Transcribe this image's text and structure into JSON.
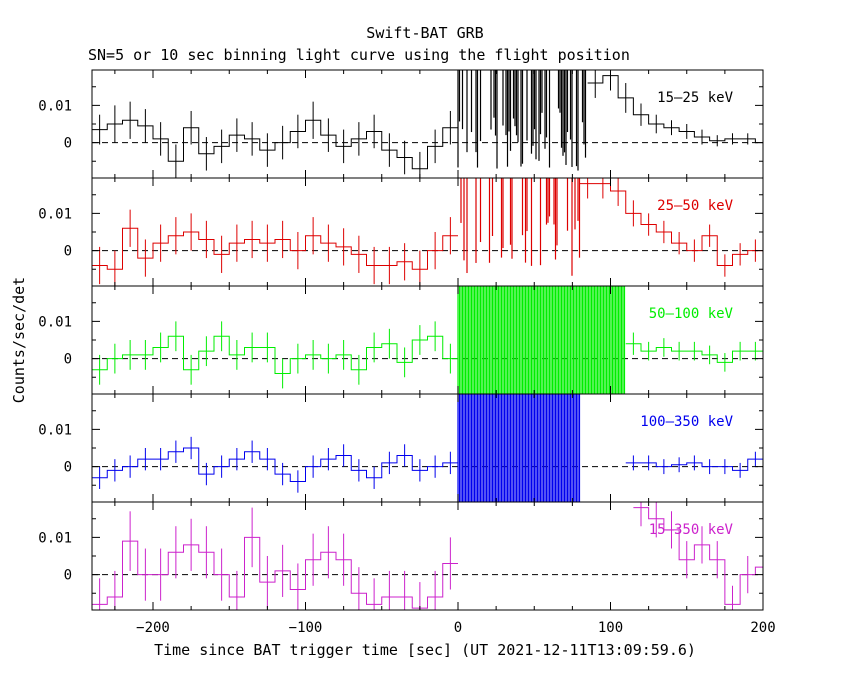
{
  "chart_data": {
    "type": "line",
    "title": "Swift-BAT GRB",
    "subtitle": "SN=5 or 10 sec binning light curve using the flight position",
    "xlabel": "Time since BAT trigger time [sec] (UT 2021-12-11T13:09:59.6)",
    "ylabel": "Counts/sec/det",
    "xlim": [
      -240,
      200
    ],
    "ylim": [
      -0.0095,
      0.0195
    ],
    "x_ticks": [
      -200,
      -100,
      0,
      100,
      200
    ],
    "x_tick_labels": [
      "−200",
      "−100",
      "0",
      "100",
      "200"
    ],
    "y_ticks": [
      0,
      0.01
    ],
    "y_tick_labels": [
      "0",
      "0.01"
    ],
    "zero_line": "dashed",
    "panels": [
      {
        "name": "15–25 keV",
        "color": "#000000",
        "label_pos": "top-right",
        "pre_x": [
          -240,
          -230,
          -220,
          -210,
          -200,
          -190,
          -180,
          -170,
          -160,
          -150,
          -140,
          -130,
          -120,
          -110,
          -100,
          -90,
          -80,
          -70,
          -60,
          -50,
          -40,
          -30,
          -20,
          -10
        ],
        "pre_y": [
          0.0035,
          0.005,
          0.006,
          0.0045,
          0.001,
          -0.005,
          0.004,
          -0.003,
          -0.001,
          0.002,
          0.001,
          -0.002,
          0.0,
          0.003,
          0.006,
          0.002,
          -0.001,
          0.001,
          0.003,
          -0.002,
          -0.004,
          -0.007,
          -0.001,
          0.004
        ],
        "pre_err": [
          0.004,
          0.005,
          0.005,
          0.0045,
          0.0045,
          0.0045,
          0.0045,
          0.0045,
          0.0045,
          0.0045,
          0.0045,
          0.0045,
          0.0045,
          0.0045,
          0.005,
          0.0045,
          0.0045,
          0.0045,
          0.0045,
          0.0045,
          0.0045,
          0.0045,
          0.0045,
          0.0045
        ],
        "burst_end": 85,
        "post_x": [
          85,
          95,
          105,
          115,
          125,
          135,
          145,
          155,
          165,
          175,
          185,
          195
        ],
        "post_y": [
          0.016,
          0.018,
          0.012,
          0.0075,
          0.005,
          0.004,
          0.003,
          0.0015,
          0.0005,
          0.001,
          0.001,
          0.0
        ],
        "post_err": [
          0.004,
          0.004,
          0.004,
          0.003,
          0.0025,
          0.002,
          0.002,
          0.002,
          0.0015,
          0.0015,
          0.0015,
          0.0015
        ],
        "burst_density": 0.55
      },
      {
        "name": "25–50 keV",
        "color": "#dd0000",
        "label_pos": "top-right",
        "pre_x": [
          -240,
          -230,
          -220,
          -210,
          -200,
          -190,
          -180,
          -170,
          -160,
          -150,
          -140,
          -130,
          -120,
          -110,
          -100,
          -90,
          -80,
          -70,
          -60,
          -50,
          -40,
          -30,
          -20,
          -10
        ],
        "pre_y": [
          -0.004,
          -0.005,
          0.006,
          -0.002,
          0.002,
          0.004,
          0.005,
          0.003,
          -0.001,
          0.002,
          0.003,
          0.002,
          0.003,
          0.0,
          0.004,
          0.002,
          0.001,
          -0.001,
          -0.004,
          -0.004,
          -0.003,
          -0.005,
          0.0,
          0.004
        ],
        "pre_err": [
          0.005,
          0.005,
          0.005,
          0.005,
          0.005,
          0.005,
          0.005,
          0.005,
          0.005,
          0.005,
          0.005,
          0.005,
          0.005,
          0.005,
          0.005,
          0.005,
          0.005,
          0.005,
          0.005,
          0.005,
          0.005,
          0.005,
          0.005,
          0.005
        ],
        "burst_end": 80,
        "post_x": [
          80,
          90,
          100,
          110,
          120,
          130,
          140,
          150,
          160,
          170,
          180,
          190
        ],
        "post_y": [
          0.018,
          0.018,
          0.016,
          0.01,
          0.007,
          0.005,
          0.002,
          0.0,
          0.004,
          -0.004,
          -0.001,
          0.0
        ],
        "post_err": [
          0.004,
          0.004,
          0.004,
          0.0035,
          0.003,
          0.003,
          0.003,
          0.003,
          0.003,
          0.003,
          0.003,
          0.003
        ],
        "burst_density": 0.35
      },
      {
        "name": "50–100 keV",
        "color": "#00ee00",
        "label_pos": "top-right",
        "pre_x": [
          -240,
          -230,
          -220,
          -210,
          -200,
          -190,
          -180,
          -170,
          -160,
          -150,
          -140,
          -130,
          -120,
          -110,
          -100,
          -90,
          -80,
          -70,
          -60,
          -50,
          -40,
          -30,
          -20,
          -10
        ],
        "pre_y": [
          -0.003,
          0.0,
          0.001,
          0.001,
          0.003,
          0.006,
          -0.003,
          0.002,
          0.006,
          0.001,
          0.003,
          0.003,
          -0.004,
          0.0,
          0.001,
          0.0,
          0.001,
          -0.003,
          0.003,
          0.004,
          -0.001,
          0.005,
          0.006,
          0.0
        ],
        "pre_err": [
          0.004,
          0.004,
          0.004,
          0.004,
          0.004,
          0.004,
          0.004,
          0.004,
          0.004,
          0.004,
          0.004,
          0.004,
          0.004,
          0.004,
          0.004,
          0.004,
          0.004,
          0.004,
          0.004,
          0.004,
          0.004,
          0.004,
          0.004,
          0.004
        ],
        "burst_end": 110,
        "post_x": [
          110,
          120,
          130,
          140,
          150,
          160,
          170,
          180,
          190
        ],
        "post_y": [
          0.004,
          0.002,
          0.003,
          0.002,
          0.002,
          0.001,
          -0.001,
          0.002,
          0.002
        ],
        "post_err": [
          0.003,
          0.0025,
          0.0025,
          0.0025,
          0.0025,
          0.0025,
          0.0025,
          0.0025,
          0.0025
        ],
        "burst_density": 1.0
      },
      {
        "name": "100–350 keV",
        "color": "#0000ee",
        "label_pos": "top-right",
        "pre_x": [
          -240,
          -230,
          -220,
          -210,
          -200,
          -190,
          -180,
          -170,
          -160,
          -150,
          -140,
          -130,
          -120,
          -110,
          -100,
          -90,
          -80,
          -70,
          -60,
          -50,
          -40,
          -30,
          -20,
          -10
        ],
        "pre_y": [
          -0.003,
          -0.001,
          0.0,
          0.002,
          0.002,
          0.004,
          0.005,
          -0.002,
          0.0,
          0.002,
          0.004,
          0.002,
          -0.002,
          -0.004,
          0.0,
          0.002,
          0.003,
          -0.001,
          -0.003,
          0.001,
          0.003,
          -0.001,
          0.0,
          0.001
        ],
        "pre_err": [
          0.003,
          0.003,
          0.003,
          0.003,
          0.003,
          0.003,
          0.003,
          0.003,
          0.003,
          0.003,
          0.003,
          0.003,
          0.003,
          0.003,
          0.003,
          0.003,
          0.003,
          0.003,
          0.003,
          0.003,
          0.003,
          0.003,
          0.003,
          0.003
        ],
        "burst_end": 80,
        "post_x": [
          110,
          120,
          130,
          140,
          150,
          160,
          170,
          180,
          190
        ],
        "post_y": [
          0.001,
          0.001,
          0.0,
          0.0005,
          0.001,
          0.0,
          0.0,
          -0.001,
          0.002
        ],
        "post_err": [
          0.002,
          0.002,
          0.002,
          0.002,
          0.002,
          0.002,
          0.002,
          0.002,
          0.002
        ],
        "burst_density": 1.0
      },
      {
        "name": "15–350 keV",
        "color": "#cc22cc",
        "label_pos": "top-right",
        "pre_x": [
          -240,
          -230,
          -220,
          -210,
          -200,
          -190,
          -180,
          -170,
          -160,
          -150,
          -140,
          -130,
          -120,
          -110,
          -100,
          -90,
          -80,
          -70,
          -60,
          -50,
          -40,
          -30,
          -20,
          -10
        ],
        "pre_y": [
          -0.008,
          -0.006,
          0.009,
          0.0,
          0.0,
          0.006,
          0.008,
          0.006,
          0.0,
          -0.006,
          0.01,
          -0.002,
          0.001,
          -0.004,
          0.004,
          0.006,
          0.004,
          -0.005,
          -0.008,
          -0.006,
          -0.006,
          -0.009,
          -0.006,
          0.003
        ],
        "pre_err": [
          0.007,
          0.007,
          0.008,
          0.007,
          0.007,
          0.007,
          0.007,
          0.007,
          0.007,
          0.007,
          0.008,
          0.007,
          0.007,
          0.007,
          0.007,
          0.007,
          0.007,
          0.007,
          0.007,
          0.007,
          0.007,
          0.007,
          0.007,
          0.007
        ],
        "burst_end": 0,
        "post_x": [
          115,
          125,
          135,
          145,
          155,
          165,
          175,
          185,
          195
        ],
        "post_y": [
          0.018,
          0.015,
          0.012,
          0.004,
          0.008,
          0.004,
          -0.008,
          0.0,
          0.002
        ],
        "post_err": [
          0.005,
          0.005,
          0.005,
          0.005,
          0.005,
          0.005,
          0.005,
          0.005,
          0.005
        ],
        "burst_density": 0.0
      }
    ]
  }
}
